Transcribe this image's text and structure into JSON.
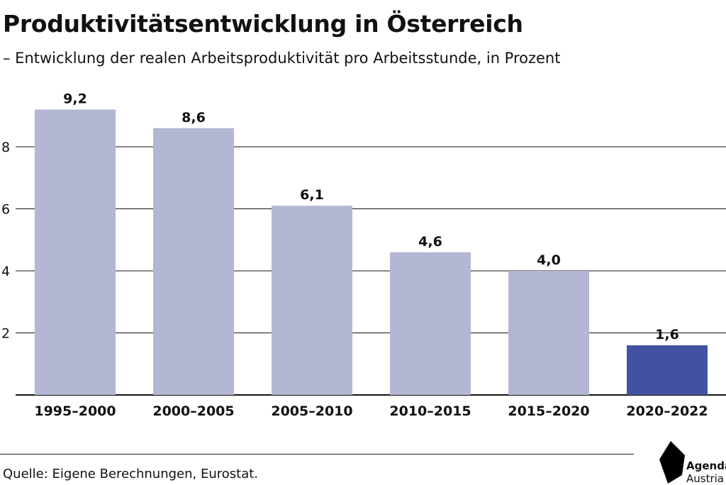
{
  "title": "Produktivitätsentwicklung in Österreich",
  "subtitle": "– Entwicklung der realen Arbeitsproduktivität pro Arbeitsstunde, in Prozent",
  "source": "Quelle: Eigene Berechnungen, Eurostat.",
  "logo": {
    "line1": "Agenda",
    "line2": "Austria"
  },
  "colors": {
    "bar": "#b3b7d4",
    "highlight": "#4153a0",
    "grid": "#111111"
  },
  "chart_data": {
    "type": "bar",
    "categories": [
      "1995–2000",
      "2000–2005",
      "2005–2010",
      "2010–2015",
      "2015–2020",
      "2020–2022"
    ],
    "values": [
      9.2,
      8.6,
      6.1,
      4.6,
      4.0,
      1.6
    ],
    "value_labels": [
      "9,2",
      "8,6",
      "6,1",
      "4,6",
      "4,0",
      "1,6"
    ],
    "highlight_index": 5,
    "yticks": [
      2,
      4,
      6,
      8
    ],
    "ylim": [
      0,
      10
    ],
    "grid": true
  }
}
